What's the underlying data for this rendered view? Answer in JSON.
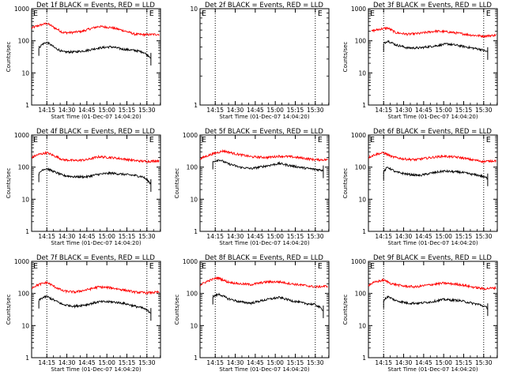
{
  "figure": {
    "background": "#ffffff",
    "events_color": "#000000",
    "lld_color": "#ff0000"
  },
  "chart_data": [
    {
      "type": "line",
      "detector": "1f",
      "title": "Det 1f BLACK = Events, RED = LLD",
      "xlabel": "Start Time (01-Dec-07 14:04:20)",
      "ylabel": "Counts/sec",
      "yscale": "log",
      "ylim": [
        1,
        1000
      ],
      "yticks": [
        "1",
        "10",
        "100",
        "1000"
      ],
      "xlim": [
        14.06,
        15.67
      ],
      "xticks": [
        "14:15",
        "14:30",
        "14:45",
        "15:00",
        "15:15",
        "15:30"
      ],
      "markers": [
        {
          "label": "E",
          "x": 14.25
        },
        {
          "label": "E",
          "x": 15.5
        }
      ],
      "series": [
        {
          "name": "LLD",
          "color": "#ff0000",
          "x_start": 14.06,
          "x_end": 15.66,
          "x": [
            14.06,
            14.15,
            14.25,
            14.35,
            14.45,
            14.55,
            14.7,
            14.9,
            15.05,
            15.2,
            15.35,
            15.5,
            15.66
          ],
          "y": [
            250,
            300,
            350,
            250,
            180,
            180,
            200,
            280,
            260,
            210,
            160,
            155,
            160
          ]
        },
        {
          "name": "Events",
          "color": "#000000",
          "x_start": 14.15,
          "x_end": 15.55,
          "x": [
            14.15,
            14.2,
            14.25,
            14.35,
            14.45,
            14.6,
            14.75,
            14.9,
            15.05,
            15.2,
            15.35,
            15.45,
            15.55
          ],
          "y": [
            60,
            80,
            90,
            60,
            45,
            45,
            50,
            60,
            65,
            55,
            50,
            45,
            30
          ]
        }
      ]
    },
    {
      "type": "line",
      "detector": "2f",
      "title": "Det 2f BLACK = Events, RED = LLD",
      "xlabel": "Start Time (01-Dec-07 14:04:20)",
      "ylabel": "",
      "yscale": "log",
      "ylim": [
        1,
        10
      ],
      "yticks": [
        "1",
        "10"
      ],
      "xlim": [
        14.06,
        15.67
      ],
      "xticks": [
        "14:15",
        "14:30",
        "14:45",
        "15:00",
        "15:15",
        "15:30"
      ],
      "markers": [
        {
          "label": "E",
          "x": 14.25
        },
        {
          "label": "E",
          "x": 15.5
        }
      ],
      "series": []
    },
    {
      "type": "line",
      "detector": "3f",
      "title": "Det 3f BLACK = Events, RED = LLD",
      "xlabel": "Start Time (01-Dec-07 14:04:20)",
      "ylabel": "Counts/sec",
      "yscale": "log",
      "ylim": [
        1,
        1000
      ],
      "yticks": [
        "1",
        "10",
        "100",
        "1000"
      ],
      "xlim": [
        14.06,
        15.67
      ],
      "xticks": [
        "14:15",
        "14:30",
        "14:45",
        "15:00",
        "15:15",
        "15:30"
      ],
      "markers": [
        {
          "label": "E",
          "x": 14.25
        },
        {
          "label": "E",
          "x": 15.5
        }
      ],
      "series": [
        {
          "name": "LLD",
          "color": "#ff0000",
          "x_start": 14.1,
          "x_end": 15.66,
          "x": [
            14.1,
            14.2,
            14.3,
            14.4,
            14.55,
            14.7,
            14.9,
            15.05,
            15.2,
            15.35,
            15.5,
            15.66
          ],
          "y": [
            200,
            230,
            250,
            180,
            160,
            170,
            200,
            190,
            170,
            150,
            140,
            150
          ]
        },
        {
          "name": "Events",
          "color": "#000000",
          "x_start": 14.25,
          "x_end": 15.55,
          "x": [
            14.25,
            14.3,
            14.4,
            14.55,
            14.7,
            14.9,
            15.05,
            15.2,
            15.35,
            15.45,
            15.55
          ],
          "y": [
            80,
            100,
            75,
            60,
            60,
            70,
            80,
            70,
            60,
            55,
            45
          ]
        }
      ]
    },
    {
      "type": "line",
      "detector": "4f",
      "title": "Det 4f BLACK = Events, RED = LLD",
      "xlabel": "Start Time (01-Dec-07 14:04:20)",
      "ylabel": "Counts/sec",
      "yscale": "log",
      "ylim": [
        1,
        1000
      ],
      "yticks": [
        "1",
        "10",
        "100",
        "1000"
      ],
      "xlim": [
        14.06,
        15.67
      ],
      "xticks": [
        "14:15",
        "14:30",
        "14:45",
        "15:00",
        "15:15",
        "15:30"
      ],
      "markers": [
        {
          "label": "E",
          "x": 14.25
        },
        {
          "label": "E",
          "x": 15.5
        }
      ],
      "series": [
        {
          "name": "LLD",
          "color": "#ff0000",
          "x_start": 14.06,
          "x_end": 15.66,
          "x": [
            14.06,
            14.15,
            14.25,
            14.35,
            14.45,
            14.6,
            14.75,
            14.9,
            15.05,
            15.2,
            15.35,
            15.5,
            15.66
          ],
          "y": [
            200,
            250,
            280,
            220,
            170,
            160,
            170,
            210,
            200,
            180,
            160,
            150,
            160
          ]
        },
        {
          "name": "Events",
          "color": "#000000",
          "x_start": 14.15,
          "x_end": 15.55,
          "x": [
            14.15,
            14.2,
            14.25,
            14.35,
            14.45,
            14.6,
            14.75,
            14.9,
            15.05,
            15.2,
            15.35,
            15.45,
            15.55
          ],
          "y": [
            60,
            85,
            90,
            70,
            55,
            50,
            50,
            60,
            65,
            60,
            55,
            50,
            30
          ]
        }
      ]
    },
    {
      "type": "line",
      "detector": "5f",
      "title": "Det 5f BLACK = Events, RED = LLD",
      "xlabel": "Start Time (01-Dec-07 14:04:20)",
      "ylabel": "Counts/sec",
      "yscale": "log",
      "ylim": [
        1,
        1000
      ],
      "yticks": [
        "1",
        "10",
        "100",
        "1000"
      ],
      "xlim": [
        14.06,
        15.67
      ],
      "xticks": [
        "14:15",
        "14:30",
        "14:45",
        "15:00",
        "15:15",
        "15:30"
      ],
      "markers": [
        {
          "label": "E",
          "x": 14.25
        },
        {
          "label": "E",
          "x": 15.5
        }
      ],
      "series": [
        {
          "name": "LLD",
          "color": "#ff0000",
          "x_start": 14.06,
          "x_end": 15.66,
          "x": [
            14.06,
            14.2,
            14.35,
            14.5,
            14.7,
            14.9,
            15.05,
            15.2,
            15.35,
            15.5,
            15.66
          ],
          "y": [
            180,
            250,
            320,
            260,
            210,
            200,
            220,
            210,
            190,
            170,
            170
          ]
        },
        {
          "name": "Events",
          "color": "#000000",
          "x_start": 14.22,
          "x_end": 15.6,
          "x": [
            14.22,
            14.3,
            14.4,
            14.55,
            14.7,
            14.9,
            15.05,
            15.2,
            15.35,
            15.5,
            15.6
          ],
          "y": [
            150,
            170,
            130,
            100,
            90,
            110,
            130,
            110,
            95,
            85,
            80
          ]
        }
      ]
    },
    {
      "type": "line",
      "detector": "6f",
      "title": "Det 6f BLACK = Events, RED = LLD",
      "xlabel": "Start Time (01-Dec-07 14:04:20)",
      "ylabel": "Counts/sec",
      "yscale": "log",
      "ylim": [
        1,
        1000
      ],
      "yticks": [
        "1",
        "10",
        "100",
        "1000"
      ],
      "xlim": [
        14.06,
        15.67
      ],
      "xticks": [
        "14:15",
        "14:30",
        "14:45",
        "15:00",
        "15:15",
        "15:30"
      ],
      "markers": [
        {
          "label": "E",
          "x": 14.25
        },
        {
          "label": "E",
          "x": 15.5
        }
      ],
      "series": [
        {
          "name": "LLD",
          "color": "#ff0000",
          "x_start": 14.06,
          "x_end": 15.66,
          "x": [
            14.06,
            14.15,
            14.25,
            14.35,
            14.5,
            14.65,
            14.85,
            15.0,
            15.2,
            15.35,
            15.5,
            15.66
          ],
          "y": [
            200,
            250,
            280,
            210,
            180,
            170,
            200,
            220,
            200,
            170,
            150,
            160
          ]
        },
        {
          "name": "Events",
          "color": "#000000",
          "x_start": 14.25,
          "x_end": 15.55,
          "x": [
            14.25,
            14.3,
            14.4,
            14.55,
            14.7,
            14.85,
            15.0,
            15.2,
            15.35,
            15.45,
            15.55
          ],
          "y": [
            70,
            100,
            70,
            60,
            55,
            65,
            75,
            70,
            60,
            55,
            45
          ]
        }
      ]
    },
    {
      "type": "line",
      "detector": "7f",
      "title": "Det 7f BLACK = Events, RED = LLD",
      "xlabel": "Start Time (01-Dec-07 14:04:20)",
      "ylabel": "Counts/sec",
      "yscale": "log",
      "ylim": [
        1,
        1000
      ],
      "yticks": [
        "1",
        "10",
        "100",
        "1000"
      ],
      "xlim": [
        14.06,
        15.67
      ],
      "xticks": [
        "14:15",
        "14:30",
        "14:45",
        "15:00",
        "15:15",
        "15:30"
      ],
      "markers": [
        {
          "label": "E",
          "x": 14.25
        },
        {
          "label": "E",
          "x": 15.5
        }
      ],
      "series": [
        {
          "name": "LLD",
          "color": "#ff0000",
          "x_start": 14.06,
          "x_end": 15.66,
          "x": [
            14.06,
            14.15,
            14.25,
            14.35,
            14.45,
            14.6,
            14.75,
            14.9,
            15.05,
            15.2,
            15.35,
            15.5,
            15.66
          ],
          "y": [
            150,
            190,
            220,
            160,
            120,
            110,
            130,
            160,
            150,
            130,
            110,
            105,
            110
          ]
        },
        {
          "name": "Events",
          "color": "#000000",
          "x_start": 14.15,
          "x_end": 15.55,
          "x": [
            14.15,
            14.2,
            14.25,
            14.35,
            14.45,
            14.6,
            14.75,
            14.9,
            15.05,
            15.2,
            15.35,
            15.45,
            15.55
          ],
          "y": [
            60,
            75,
            80,
            60,
            45,
            40,
            45,
            55,
            55,
            50,
            40,
            35,
            25
          ]
        }
      ]
    },
    {
      "type": "line",
      "detector": "8f",
      "title": "Det 8f BLACK = Events, RED = LLD",
      "xlabel": "Start Time (01-Dec-07 14:04:20)",
      "ylabel": "Counts/sec",
      "yscale": "log",
      "ylim": [
        1,
        1000
      ],
      "yticks": [
        "1",
        "10",
        "100",
        "1000"
      ],
      "xlim": [
        14.06,
        15.67
      ],
      "xticks": [
        "14:15",
        "14:30",
        "14:45",
        "15:00",
        "15:15",
        "15:30"
      ],
      "markers": [
        {
          "label": "E",
          "x": 14.25
        },
        {
          "label": "E",
          "x": 15.5
        }
      ],
      "series": [
        {
          "name": "LLD",
          "color": "#ff0000",
          "x_start": 14.06,
          "x_end": 15.66,
          "x": [
            14.06,
            14.15,
            14.28,
            14.4,
            14.55,
            14.7,
            14.9,
            15.05,
            15.2,
            15.35,
            15.5,
            15.66
          ],
          "y": [
            180,
            240,
            310,
            230,
            200,
            190,
            230,
            230,
            200,
            180,
            160,
            170
          ]
        },
        {
          "name": "Events",
          "color": "#000000",
          "x_start": 14.22,
          "x_end": 15.6,
          "x": [
            14.22,
            14.3,
            14.4,
            14.55,
            14.7,
            14.9,
            15.05,
            15.2,
            15.35,
            15.5,
            15.6
          ],
          "y": [
            80,
            95,
            70,
            55,
            50,
            65,
            75,
            60,
            50,
            45,
            30
          ]
        }
      ]
    },
    {
      "type": "line",
      "detector": "9f",
      "title": "Det 9f BLACK = Events, RED = LLD",
      "xlabel": "Start Time (01-Dec-07 14:04:20)",
      "ylabel": "Counts/sec",
      "yscale": "log",
      "ylim": [
        1,
        1000
      ],
      "yticks": [
        "1",
        "10",
        "100",
        "1000"
      ],
      "xlim": [
        14.06,
        15.67
      ],
      "xticks": [
        "14:15",
        "14:30",
        "14:45",
        "15:00",
        "15:15",
        "15:30"
      ],
      "markers": [
        {
          "label": "E",
          "x": 14.25
        },
        {
          "label": "E",
          "x": 15.5
        }
      ],
      "series": [
        {
          "name": "LLD",
          "color": "#ff0000",
          "x_start": 14.06,
          "x_end": 15.66,
          "x": [
            14.06,
            14.15,
            14.25,
            14.35,
            14.5,
            14.65,
            14.85,
            15.0,
            15.2,
            15.35,
            15.5,
            15.66
          ],
          "y": [
            180,
            230,
            260,
            200,
            170,
            160,
            190,
            210,
            190,
            160,
            140,
            150
          ]
        },
        {
          "name": "Events",
          "color": "#000000",
          "x_start": 14.25,
          "x_end": 15.55,
          "x": [
            14.25,
            14.3,
            14.4,
            14.55,
            14.7,
            14.85,
            15.0,
            15.2,
            15.35,
            15.45,
            15.55
          ],
          "y": [
            60,
            80,
            60,
            50,
            50,
            55,
            65,
            60,
            50,
            45,
            35
          ]
        }
      ]
    }
  ]
}
